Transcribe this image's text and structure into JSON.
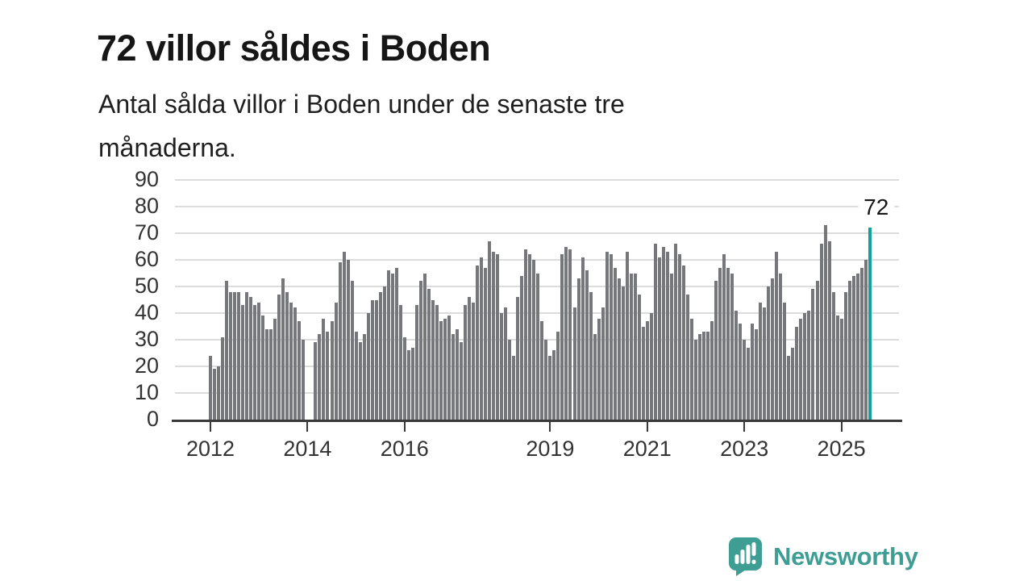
{
  "header": {
    "title": "72 villor såldes i Boden",
    "subtitle_lines": [
      "Antal sålda villor i Boden under de senaste tre",
      "månaderna."
    ]
  },
  "chart_data": {
    "type": "bar",
    "description": "Monthly number of sold houses (villor) in Boden, Jan 2012 to mid 2025",
    "x_start": {
      "year": 2012,
      "month": 1
    },
    "values": [
      24,
      19,
      20,
      31,
      52,
      48,
      48,
      48,
      43,
      48,
      46,
      43,
      44,
      39,
      34,
      34,
      38,
      47,
      53,
      48,
      44,
      42,
      37,
      30,
      0,
      0,
      29,
      32,
      38,
      33,
      37,
      44,
      59,
      63,
      60,
      52,
      33,
      29,
      32,
      40,
      45,
      45,
      48,
      50,
      56,
      55,
      57,
      43,
      31,
      26,
      27,
      43,
      52,
      55,
      49,
      45,
      43,
      37,
      38,
      39,
      32,
      34,
      29,
      43,
      46,
      44,
      58,
      61,
      57,
      67,
      63,
      62,
      40,
      42,
      30,
      24,
      46,
      54,
      64,
      62,
      60,
      55,
      37,
      30,
      24,
      26,
      33,
      62,
      65,
      64,
      42,
      53,
      61,
      56,
      48,
      32,
      38,
      42,
      63,
      62,
      57,
      53,
      50,
      63,
      55,
      55,
      47,
      35,
      37,
      40,
      66,
      61,
      65,
      63,
      55,
      66,
      62,
      58,
      47,
      38,
      30,
      32,
      33,
      33,
      37,
      52,
      57,
      62,
      57,
      55,
      41,
      36,
      30,
      27,
      36,
      34,
      44,
      42,
      50,
      53,
      63,
      55,
      44,
      24,
      27,
      35,
      38,
      40,
      41,
      49,
      52,
      66,
      73,
      67,
      48,
      39,
      38,
      48,
      52,
      54,
      55,
      57,
      60,
      72
    ],
    "highlight": {
      "index": 163,
      "value": 72,
      "label": "72"
    },
    "yaxis": {
      "ticks": [
        0,
        10,
        20,
        30,
        40,
        50,
        60,
        70,
        80,
        90
      ],
      "min": 0,
      "max": 90,
      "grid": true
    },
    "xaxis": {
      "ticks": [
        {
          "label": "2012",
          "month_index": 0
        },
        {
          "label": "2014",
          "month_index": 24
        },
        {
          "label": "2016",
          "month_index": 48
        },
        {
          "label": "2019",
          "month_index": 84
        },
        {
          "label": "2021",
          "month_index": 108
        },
        {
          "label": "2023",
          "month_index": 132
        },
        {
          "label": "2025",
          "month_index": 156
        }
      ]
    },
    "colors": {
      "bar": "#75777a",
      "highlight": "#12a19b",
      "grid": "#dcdcdc",
      "axis": "#3a3a3a",
      "tick_text": "#333333"
    },
    "legend": null
  },
  "footer": {
    "brand": "Newsworthy",
    "logo_icon": "newsworthy-speech-bubble-barchart-icon",
    "brand_color": "#3f9e94"
  }
}
